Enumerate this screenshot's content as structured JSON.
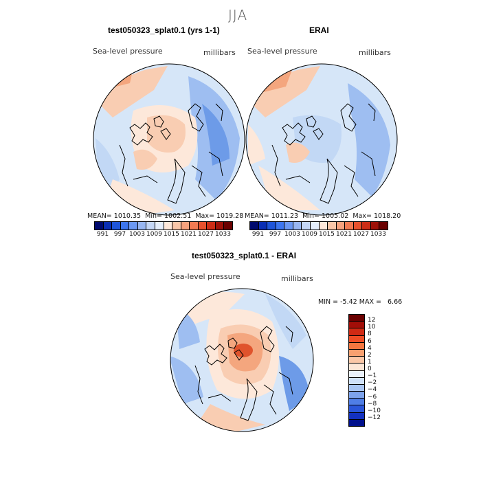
{
  "figure": {
    "season": "JJA"
  },
  "panel_model": {
    "title": "test050323_splat0.1 (yrs 1-1)",
    "variable": "Sea-level pressure",
    "units": "millibars",
    "mean_label": "MEAN=",
    "mean": "1010.35",
    "min_label": "Min=",
    "min": "1002.51",
    "max_label": "Max=",
    "max": "1019.28"
  },
  "panel_obs": {
    "title": "ERAI",
    "variable": "Sea-level pressure",
    "units": "millibars",
    "mean_label": "MEAN=",
    "mean": "1011.23",
    "min_label": "Min=",
    "min": "1005.02",
    "max_label": "Max=",
    "max": "1018.20"
  },
  "panel_diff": {
    "title": "test050323_splat0.1 - ERAI",
    "variable": "Sea-level pressure",
    "units": "millibars",
    "min_label": "MIN =",
    "min": "-5.42",
    "max_label": "MAX =",
    "max": "6.66"
  },
  "abs_colorbar": {
    "colors": [
      "#000a6e",
      "#0b2fb4",
      "#1f55d9",
      "#3d76ef",
      "#6b98f3",
      "#98b6f1",
      "#c5d7f6",
      "#e5eefb",
      "#fde8da",
      "#f9c6a8",
      "#f6a27e",
      "#f27a52",
      "#e8512d",
      "#cc2d16",
      "#9e1108",
      "#6a0000"
    ],
    "tick_labels": [
      "991",
      "997",
      "1003",
      "1009",
      "1015",
      "1021",
      "1027",
      "1033"
    ]
  },
  "diff_colorbar": {
    "colors": [
      "#6a0000",
      "#a20e08",
      "#d02a14",
      "#ee4d25",
      "#f5763f",
      "#f8a070",
      "#fbc7a7",
      "#fde6d6",
      "#eaf1fb",
      "#cfe0f8",
      "#a9c5f2",
      "#7da3ec",
      "#4f7ee6",
      "#2a56d9",
      "#1331bf",
      "#00108c"
    ],
    "tick_labels": [
      "12",
      "10",
      "8",
      "6",
      "4",
      "2",
      "1",
      "0",
      "−1",
      "−2",
      "−4",
      "−6",
      "−8",
      "−10",
      "−12"
    ]
  },
  "map_colors": {
    "ocean_base": "#d6e6f8",
    "blue_light": "#c2d8f5",
    "blue_mid": "#9ebef1",
    "blue_dark": "#6d9be8",
    "pink_light": "#fde8da",
    "pink_mid": "#f9cdb2",
    "orange": "#f4a67e",
    "red": "#e0532c",
    "coast": "#000000"
  }
}
